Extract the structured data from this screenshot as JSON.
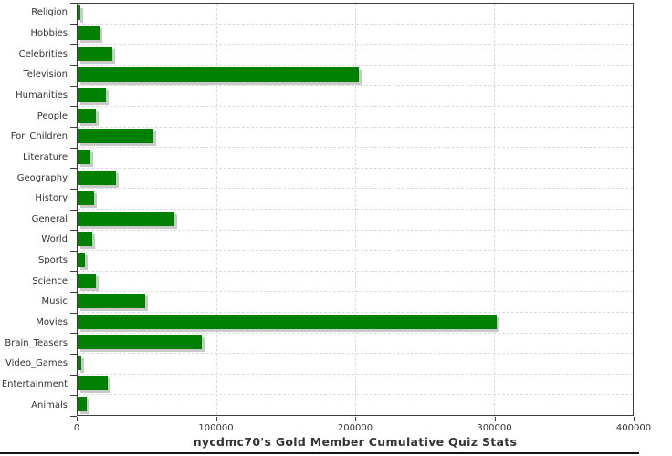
{
  "title": "nycdmc70's Gold Member Cumulative Quiz Stats",
  "colors": {
    "bar": "#008000",
    "bar_shadow": "#c9c9c9",
    "gridline": "#d9d9d9",
    "frame": "#3c3c3c",
    "text": "#333333",
    "background": "#ffffff"
  },
  "chart_data": {
    "type": "bar",
    "orientation": "horizontal",
    "title": "nycdmc70's Gold Member Cumulative Quiz Stats",
    "xlabel": "",
    "ylabel": "",
    "categories": [
      "Religion",
      "Hobbies",
      "Celebrities",
      "Television",
      "Humanities",
      "People",
      "For_Children",
      "Literature",
      "Geography",
      "History",
      "General",
      "World",
      "Sports",
      "Science",
      "Music",
      "Movies",
      "Brain_Teasers",
      "Video_Games",
      "Entertainment",
      "Animals"
    ],
    "values": [
      2000,
      16000,
      25000,
      202500,
      20500,
      13000,
      54500,
      9200,
      27500,
      11800,
      69500,
      10500,
      5300,
      13200,
      48700,
      302000,
      89500,
      2600,
      21700,
      6600
    ],
    "xlim": [
      0,
      400000
    ],
    "xticks": [
      0,
      100000,
      200000,
      300000,
      400000
    ],
    "xtick_labels": [
      "0",
      "100000",
      "200000",
      "300000",
      "400000"
    ],
    "grid": true,
    "legend": false
  }
}
